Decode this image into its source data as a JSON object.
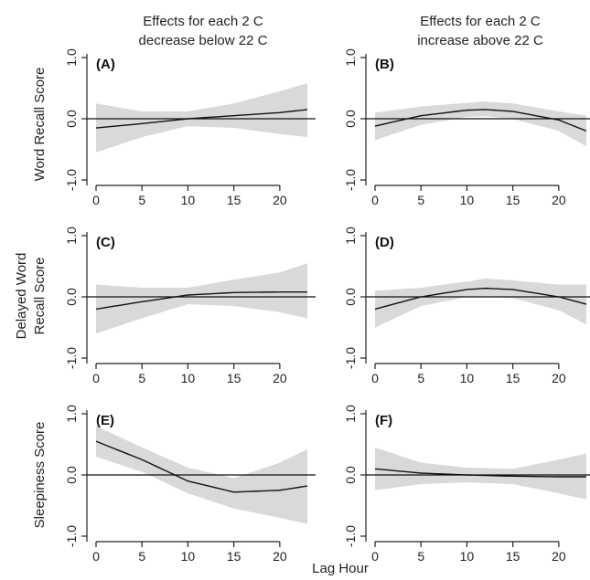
{
  "figure": {
    "column_titles": [
      [
        "Effects for each 2 C",
        "decrease below 22 C"
      ],
      [
        "Effects for each 2 C",
        "increase above 22 C"
      ]
    ],
    "row_labels": [
      [
        "Word Recall Score"
      ],
      [
        "Delayed Word",
        "Recall Score"
      ],
      [
        "Sleepiness Score"
      ]
    ],
    "xlabel": "Lag Hour",
    "colors": {
      "band": "#d9d9d9",
      "line": "#111111",
      "axis": "#222222"
    }
  },
  "chart_data": [
    {
      "type": "line",
      "label": "(A)",
      "xlim": [
        0,
        23
      ],
      "ylim": [
        -1,
        1
      ],
      "xticks": [
        0,
        5,
        10,
        15,
        20
      ],
      "yticks": [
        -1,
        0,
        1
      ],
      "xtick_labels": [
        "0",
        "5",
        "10",
        "15",
        "20"
      ],
      "ytick_labels": [
        "-1.0",
        "0.0",
        "1.0"
      ],
      "x": [
        0,
        5,
        10,
        15,
        20,
        23
      ],
      "estimate": [
        -0.15,
        -0.08,
        0.0,
        0.05,
        0.1,
        0.15
      ],
      "lower": [
        -0.55,
        -0.3,
        -0.12,
        -0.15,
        -0.25,
        -0.3
      ],
      "upper": [
        0.25,
        0.12,
        0.12,
        0.25,
        0.45,
        0.58
      ]
    },
    {
      "type": "line",
      "label": "(B)",
      "xlim": [
        0,
        23
      ],
      "ylim": [
        -1,
        1
      ],
      "xticks": [
        0,
        5,
        10,
        15,
        20
      ],
      "yticks": [
        -1,
        0,
        1
      ],
      "xtick_labels": [
        "0",
        "5",
        "10",
        "15",
        "20"
      ],
      "ytick_labels": [
        "-1.0",
        "0.0",
        "1.0"
      ],
      "x": [
        0,
        5,
        10,
        12,
        15,
        20,
        23
      ],
      "estimate": [
        -0.12,
        0.05,
        0.14,
        0.15,
        0.12,
        -0.02,
        -0.2
      ],
      "lower": [
        -0.35,
        -0.1,
        0.03,
        0.04,
        0.0,
        -0.2,
        -0.45
      ],
      "upper": [
        0.1,
        0.2,
        0.26,
        0.28,
        0.25,
        0.12,
        0.05
      ]
    },
    {
      "type": "line",
      "label": "(C)",
      "xlim": [
        0,
        23
      ],
      "ylim": [
        -1,
        1
      ],
      "xticks": [
        0,
        5,
        10,
        15,
        20
      ],
      "yticks": [
        -1,
        0,
        1
      ],
      "xtick_labels": [
        "0",
        "5",
        "10",
        "15",
        "20"
      ],
      "ytick_labels": [
        "-1.0",
        "0.0",
        "1.0"
      ],
      "x": [
        0,
        5,
        10,
        15,
        20,
        23
      ],
      "estimate": [
        -0.2,
        -0.08,
        0.03,
        0.07,
        0.08,
        0.08
      ],
      "lower": [
        -0.6,
        -0.35,
        -0.12,
        -0.15,
        -0.25,
        -0.35
      ],
      "upper": [
        0.2,
        0.15,
        0.15,
        0.28,
        0.4,
        0.55
      ]
    },
    {
      "type": "line",
      "label": "(D)",
      "xlim": [
        0,
        23
      ],
      "ylim": [
        -1,
        1
      ],
      "xticks": [
        0,
        5,
        10,
        15,
        20
      ],
      "yticks": [
        -1,
        0,
        1
      ],
      "xtick_labels": [
        "0",
        "5",
        "10",
        "15",
        "20"
      ],
      "ytick_labels": [
        "-1.0",
        "0.0",
        "1.0"
      ],
      "x": [
        0,
        5,
        10,
        12,
        15,
        20,
        23
      ],
      "estimate": [
        -0.2,
        0.0,
        0.12,
        0.14,
        0.12,
        0.0,
        -0.12
      ],
      "lower": [
        -0.5,
        -0.15,
        0.0,
        0.0,
        -0.02,
        -0.22,
        -0.45
      ],
      "upper": [
        0.1,
        0.15,
        0.25,
        0.3,
        0.27,
        0.2,
        0.2
      ]
    },
    {
      "type": "line",
      "label": "(E)",
      "xlim": [
        0,
        23
      ],
      "ylim": [
        -1,
        1
      ],
      "xticks": [
        0,
        5,
        10,
        15,
        20
      ],
      "yticks": [
        -1,
        0,
        1
      ],
      "xtick_labels": [
        "0",
        "5",
        "10",
        "15",
        "20"
      ],
      "ytick_labels": [
        "-1.0",
        "0.0",
        "1.0"
      ],
      "x": [
        0,
        5,
        10,
        15,
        20,
        23
      ],
      "estimate": [
        0.55,
        0.25,
        -0.1,
        -0.28,
        -0.25,
        -0.18
      ],
      "lower": [
        0.3,
        0.05,
        -0.3,
        -0.55,
        -0.7,
        -0.8
      ],
      "upper": [
        0.8,
        0.45,
        0.12,
        -0.05,
        0.2,
        0.42
      ]
    },
    {
      "type": "line",
      "label": "(F)",
      "xlim": [
        0,
        23
      ],
      "ylim": [
        -1,
        1
      ],
      "xticks": [
        0,
        5,
        10,
        15,
        20
      ],
      "yticks": [
        -1,
        0,
        1
      ],
      "xtick_labels": [
        "0",
        "5",
        "10",
        "15",
        "20"
      ],
      "ytick_labels": [
        "-1.0",
        "0.0",
        "1.0"
      ],
      "x": [
        0,
        5,
        10,
        15,
        20,
        23
      ],
      "estimate": [
        0.1,
        0.03,
        0.0,
        -0.02,
        -0.03,
        -0.03
      ],
      "lower": [
        -0.25,
        -0.15,
        -0.12,
        -0.15,
        -0.3,
        -0.4
      ],
      "upper": [
        0.45,
        0.2,
        0.12,
        0.1,
        0.25,
        0.35
      ]
    }
  ]
}
